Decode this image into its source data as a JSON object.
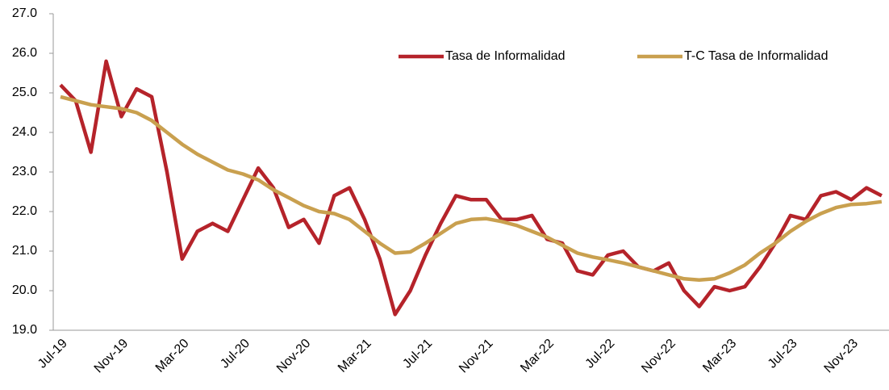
{
  "chart_data": {
    "type": "line",
    "categories": [
      "Jul-19",
      null,
      null,
      null,
      "Nov-19",
      null,
      null,
      null,
      "Mar-20",
      null,
      null,
      null,
      "Jul-20",
      null,
      null,
      null,
      "Nov-20",
      null,
      null,
      null,
      "Mar-21",
      null,
      null,
      null,
      "Jul-21",
      null,
      null,
      null,
      "Nov-21",
      null,
      null,
      null,
      "Mar-22",
      null,
      null,
      null,
      "Jul-22",
      null,
      null,
      null,
      "Nov-22",
      null,
      null,
      null,
      "Mar-23",
      null,
      null,
      null,
      "Jul-23",
      null,
      null,
      null,
      "Nov-23",
      null,
      null
    ],
    "series": [
      {
        "name": "Tasa de Informalidad",
        "color": "#b5232a",
        "values": [
          25.2,
          24.8,
          23.5,
          25.8,
          24.4,
          25.1,
          24.9,
          23.0,
          20.8,
          21.5,
          21.7,
          21.5,
          22.3,
          23.1,
          22.6,
          21.6,
          21.8,
          21.2,
          22.4,
          22.6,
          21.8,
          20.8,
          19.4,
          20.0,
          20.9,
          21.7,
          22.4,
          22.3,
          22.3,
          21.8,
          21.8,
          21.9,
          21.3,
          21.2,
          20.5,
          20.4,
          20.9,
          21.0,
          20.6,
          20.5,
          20.7,
          20.0,
          19.6,
          20.1,
          20.0,
          20.1,
          20.6,
          21.2,
          21.9,
          21.8,
          22.4,
          22.5,
          22.3,
          22.6,
          22.4
        ]
      },
      {
        "name": "T-C Tasa de Informalidad",
        "color": "#c9a04f",
        "values": [
          24.9,
          24.8,
          24.7,
          24.65,
          24.6,
          24.5,
          24.3,
          24.0,
          23.7,
          23.45,
          23.25,
          23.05,
          22.95,
          22.8,
          22.55,
          22.35,
          22.15,
          22.0,
          21.95,
          21.8,
          21.5,
          21.2,
          20.95,
          20.98,
          21.2,
          21.45,
          21.7,
          21.8,
          21.82,
          21.75,
          21.65,
          21.5,
          21.35,
          21.15,
          20.95,
          20.85,
          20.78,
          20.7,
          20.6,
          20.5,
          20.4,
          20.3,
          20.27,
          20.3,
          20.45,
          20.65,
          20.95,
          21.2,
          21.5,
          21.75,
          21.95,
          22.1,
          22.18,
          22.2,
          22.25
        ]
      }
    ],
    "ylim": [
      19,
      27
    ],
    "yticks": [
      {
        "value": 19,
        "label": "19.0"
      },
      {
        "value": 20,
        "label": "20.0"
      },
      {
        "value": 21,
        "label": "21.0"
      },
      {
        "value": 22,
        "label": "22.0"
      },
      {
        "value": 23,
        "label": "23.0"
      },
      {
        "value": 24,
        "label": "24.0"
      },
      {
        "value": 25,
        "label": "25.0"
      },
      {
        "value": 26,
        "label": "26.0"
      },
      {
        "value": 27,
        "label": "27.0"
      }
    ],
    "grid": false,
    "legend": "top-right"
  }
}
